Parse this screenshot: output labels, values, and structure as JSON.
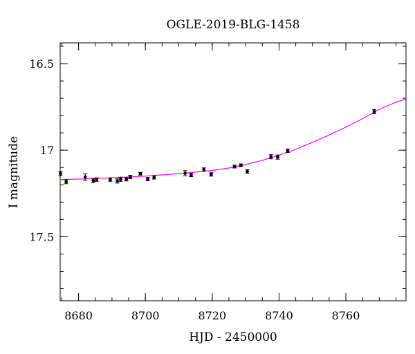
{
  "chart_data": {
    "type": "scatter",
    "title": "OGLE-2019-BLG-1458",
    "xlabel": "HJD - 2450000",
    "ylabel": "I magnitude",
    "xlim": [
      8674.5,
      8778
    ],
    "ylim": [
      17.87,
      16.38
    ],
    "y_inverted": true,
    "x_major_ticks": [
      8680,
      8700,
      8720,
      8740,
      8760
    ],
    "y_major_ticks": [
      16.5,
      17,
      17.5
    ],
    "x_tick_labels": [
      "8680",
      "8700",
      "8720",
      "8740",
      "8760"
    ],
    "y_tick_labels": [
      "16.5",
      "17",
      "17.5"
    ],
    "x_minor_step": 5,
    "y_minor_step": 0.1,
    "grid": false,
    "point_color": "#000000",
    "model_color": "#ff00ff",
    "series": [
      {
        "points": [
          {
            "x": 8674.6,
            "y": 17.135,
            "err": 0.012
          },
          {
            "x": 8676.3,
            "y": 17.182,
            "err": 0.012
          },
          {
            "x": 8682.0,
            "y": 17.155,
            "err": 0.018
          },
          {
            "x": 8684.4,
            "y": 17.175,
            "err": 0.012
          },
          {
            "x": 8685.4,
            "y": 17.17,
            "err": 0.01
          },
          {
            "x": 8689.5,
            "y": 17.17,
            "err": 0.01
          },
          {
            "x": 8691.6,
            "y": 17.178,
            "err": 0.012
          },
          {
            "x": 8692.6,
            "y": 17.168,
            "err": 0.012
          },
          {
            "x": 8694.3,
            "y": 17.168,
            "err": 0.01
          },
          {
            "x": 8695.5,
            "y": 17.155,
            "err": 0.01
          },
          {
            "x": 8698.5,
            "y": 17.136,
            "err": 0.008
          },
          {
            "x": 8700.7,
            "y": 17.167,
            "err": 0.01
          },
          {
            "x": 8702.6,
            "y": 17.157,
            "err": 0.01
          },
          {
            "x": 8711.9,
            "y": 17.133,
            "err": 0.015
          },
          {
            "x": 8713.7,
            "y": 17.143,
            "err": 0.01
          },
          {
            "x": 8717.5,
            "y": 17.112,
            "err": 0.01
          },
          {
            "x": 8719.7,
            "y": 17.14,
            "err": 0.01
          },
          {
            "x": 8726.7,
            "y": 17.095,
            "err": 0.008
          },
          {
            "x": 8728.6,
            "y": 17.087,
            "err": 0.008
          },
          {
            "x": 8730.5,
            "y": 17.123,
            "err": 0.01
          },
          {
            "x": 8737.6,
            "y": 17.038,
            "err": 0.012
          },
          {
            "x": 8739.6,
            "y": 17.04,
            "err": 0.012
          },
          {
            "x": 8742.6,
            "y": 17.003,
            "err": 0.01
          },
          {
            "x": 8768.5,
            "y": 16.777,
            "err": 0.012
          }
        ]
      },
      {
        "type": "line",
        "x": [
          8674.5,
          8680,
          8690,
          8700,
          8710,
          8720,
          8725,
          8730,
          8735,
          8740,
          8745,
          8750,
          8755,
          8760,
          8765,
          8770,
          8775,
          8778
        ],
        "y": [
          17.17,
          17.167,
          17.16,
          17.15,
          17.136,
          17.117,
          17.103,
          17.083,
          17.059,
          17.029,
          16.995,
          16.955,
          16.912,
          16.867,
          16.818,
          16.764,
          16.723,
          16.705
        ]
      }
    ]
  }
}
